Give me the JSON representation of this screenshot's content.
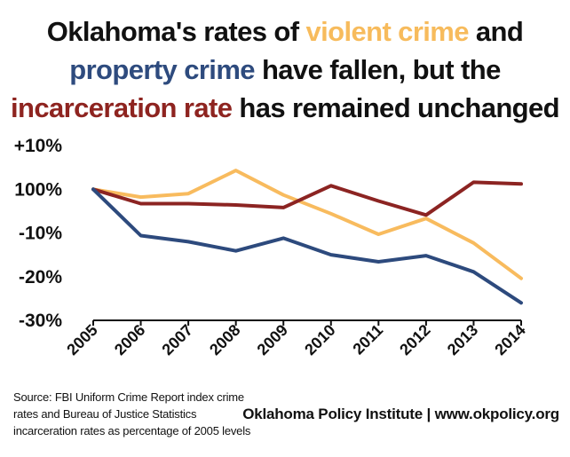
{
  "title": {
    "line1_prefix": "Oklahoma's rates of ",
    "line1_violent": "violent crime",
    "line1_suffix": " and",
    "line2_property": "property crime",
    "line2_suffix": " have fallen, but the",
    "line3_incarc": "incarceration rate",
    "line3_suffix": " has remained unchanged"
  },
  "chart_data": {
    "type": "line",
    "title": "Oklahoma's rates of violent crime and property crime have fallen, but the incarceration rate has remained unchanged",
    "xlabel": "",
    "ylabel": "",
    "x": [
      "2005",
      "2006",
      "2007",
      "2008",
      "2009",
      "2010",
      "2011",
      "2012",
      "2013",
      "2014"
    ],
    "ylim": [
      -30,
      10
    ],
    "ytick_values": [
      10,
      0,
      -10,
      -20,
      -30
    ],
    "ytick_labels": [
      "+10%",
      "100%",
      "-10%",
      "-20%",
      "-30%"
    ],
    "grid": false,
    "legend": "none (series named in title)",
    "series": [
      {
        "name": "violent crime",
        "color": "#f8bb5e",
        "values": [
          0,
          -1.8,
          -1.0,
          4.3,
          -1.3,
          -5.6,
          -10.3,
          -6.7,
          -12.3,
          -20.4
        ]
      },
      {
        "name": "property crime",
        "color": "#2d4a7d",
        "values": [
          0,
          -10.6,
          -12.0,
          -14.1,
          -11.2,
          -15.0,
          -16.6,
          -15.2,
          -18.9,
          -26.0
        ]
      },
      {
        "name": "incarceration rate",
        "color": "#8c2422",
        "values": [
          0,
          -3.3,
          -3.3,
          -3.6,
          -4.2,
          0.8,
          -2.7,
          -5.9,
          1.6,
          1.2
        ]
      }
    ]
  },
  "footer": {
    "source": "Source: FBI Uniform Crime Report index crime rates and Bureau of Justice Statistics incarceration rates as percentage of 2005 levels",
    "org": "Oklahoma Policy Institute | www.okpolicy.org"
  }
}
